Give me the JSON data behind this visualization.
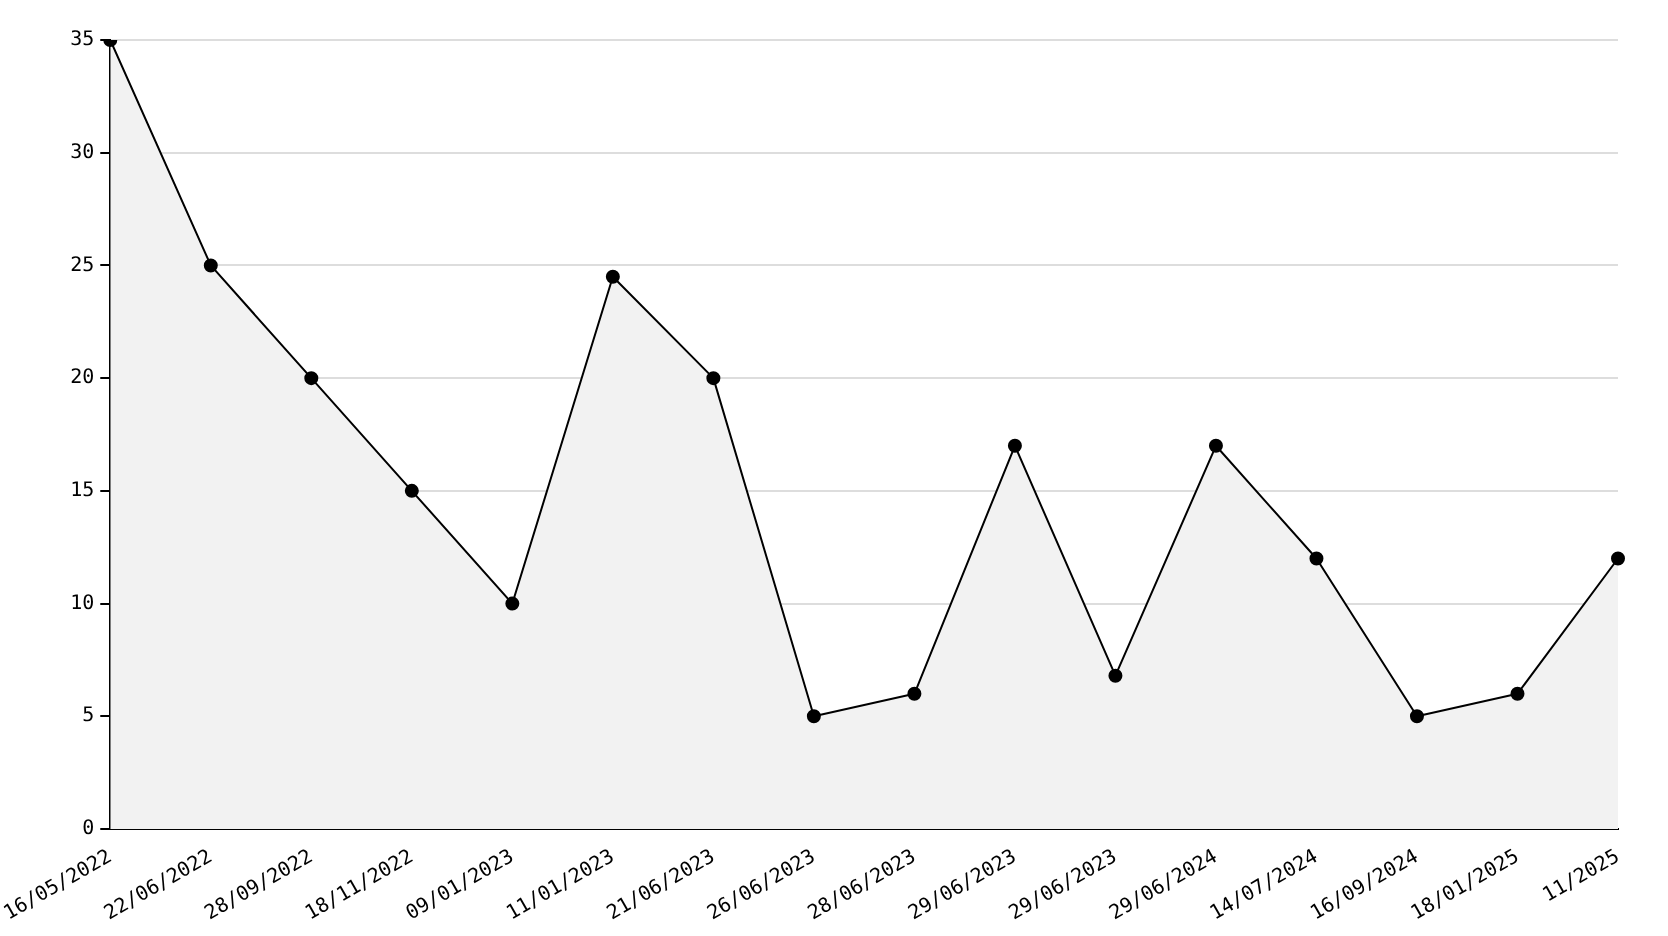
{
  "chart_data": {
    "type": "area",
    "categories": [
      "16/05/2022",
      "22/06/2022",
      "28/09/2022",
      "18/11/2022",
      "09/01/2023",
      "11/01/2023",
      "21/06/2023",
      "26/06/2023",
      "28/06/2023",
      "29/06/2023",
      "29/06/2023",
      "29/06/2024",
      "14/07/2024",
      "16/09/2024",
      "18/01/2025",
      "11/2025"
    ],
    "series": [
      {
        "color": "#000000",
        "values": [
          35,
          25,
          20,
          15,
          10,
          24.5,
          20,
          5,
          6,
          17,
          6.8,
          17,
          12,
          5,
          6,
          12
        ]
      }
    ],
    "ylim": [
      0,
      35
    ],
    "yticks": [
      0,
      5,
      10,
      15,
      20,
      25,
      30,
      35
    ],
    "grid": "y",
    "legend": false,
    "marker": "circle",
    "line_style": "solid"
  }
}
